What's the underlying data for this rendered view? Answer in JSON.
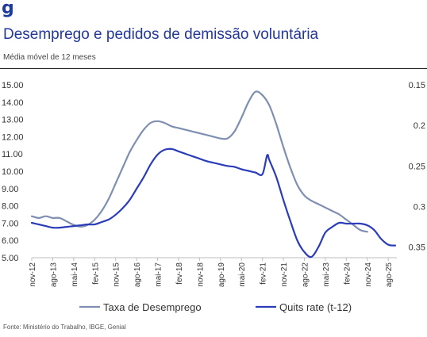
{
  "logo_text": "g",
  "title": "Desemprego e pedidos de demissão voluntária",
  "subtitle": "Média móvel de 12 meses",
  "source": "Fonte: Ministério do Trabalho, IBGE, Genial",
  "colors": {
    "unemployment": "#7f8fb1",
    "quits": "#2b3db8",
    "title": "#23389a"
  },
  "chart_data": {
    "type": "line",
    "x_ticks": [
      "nov-12",
      "ago-13",
      "mai-14",
      "fev-15",
      "nov-15",
      "ago-16",
      "mai-17",
      "fev-18",
      "nov-18",
      "ago-19",
      "mai-20",
      "fev-21",
      "nov-21",
      "ago-22",
      "mai-23",
      "fev-24",
      "nov-24",
      "ago-25"
    ],
    "left_axis": {
      "ticks": [
        "5.00",
        "6.00",
        "7.00",
        "8.00",
        "9.00",
        "10.00",
        "11.00",
        "12.00",
        "13.00",
        "14.00",
        "15.00"
      ],
      "ylim": [
        5,
        15
      ]
    },
    "right_axis": {
      "ticks": [
        "0.15",
        "0.2",
        "0.25",
        "0.3",
        "0.35"
      ],
      "ylim": [
        0.363,
        0.15
      ],
      "inverted": true
    },
    "series": [
      {
        "name": "Taxa de Desemprego",
        "axis": "left",
        "x": [
          "2012-11",
          "2013-02",
          "2013-05",
          "2013-08",
          "2013-11",
          "2014-02",
          "2014-05",
          "2014-08",
          "2014-11",
          "2015-02",
          "2015-05",
          "2015-08",
          "2015-11",
          "2016-02",
          "2016-05",
          "2016-08",
          "2016-11",
          "2017-02",
          "2017-05",
          "2017-08",
          "2017-11",
          "2018-02",
          "2018-05",
          "2018-08",
          "2018-11",
          "2019-02",
          "2019-05",
          "2019-08",
          "2019-11",
          "2020-02",
          "2020-05",
          "2020-08",
          "2020-11",
          "2021-02",
          "2021-05",
          "2021-08",
          "2021-11",
          "2022-02",
          "2022-05",
          "2022-08",
          "2022-11",
          "2023-02",
          "2023-05",
          "2023-08",
          "2023-11",
          "2024-02",
          "2024-05",
          "2024-08",
          "2024-11"
        ],
        "values": [
          7.4,
          7.3,
          7.4,
          7.3,
          7.3,
          7.1,
          6.9,
          6.8,
          6.9,
          7.2,
          7.7,
          8.4,
          9.3,
          10.2,
          11.1,
          11.8,
          12.4,
          12.8,
          12.9,
          12.8,
          12.6,
          12.5,
          12.4,
          12.3,
          12.2,
          12.1,
          12.0,
          11.9,
          11.9,
          12.3,
          13.1,
          14.0,
          14.6,
          14.4,
          13.8,
          12.7,
          11.4,
          10.2,
          9.2,
          8.6,
          8.3,
          8.1,
          7.9,
          7.7,
          7.5,
          7.2,
          6.9,
          6.6,
          6.5
        ]
      },
      {
        "name": "Quits rate (t-12)",
        "axis": "right",
        "x": [
          "2012-11",
          "2013-02",
          "2013-05",
          "2013-08",
          "2013-11",
          "2014-02",
          "2014-05",
          "2014-08",
          "2014-11",
          "2015-02",
          "2015-05",
          "2015-08",
          "2015-11",
          "2016-02",
          "2016-05",
          "2016-08",
          "2016-11",
          "2017-02",
          "2017-05",
          "2017-08",
          "2017-11",
          "2018-02",
          "2018-05",
          "2018-08",
          "2018-11",
          "2019-02",
          "2019-05",
          "2019-08",
          "2019-11",
          "2020-02",
          "2020-05",
          "2020-08",
          "2020-11",
          "2021-02",
          "2021-04",
          "2021-05",
          "2021-08",
          "2021-11",
          "2022-02",
          "2022-05",
          "2022-08",
          "2022-11",
          "2023-02",
          "2023-05",
          "2023-08",
          "2023-11",
          "2024-02",
          "2024-05",
          "2024-08",
          "2024-11",
          "2025-02",
          "2025-05",
          "2025-08",
          "2025-11"
        ],
        "values": [
          0.32,
          0.322,
          0.324,
          0.326,
          0.326,
          0.325,
          0.324,
          0.323,
          0.322,
          0.322,
          0.319,
          0.316,
          0.31,
          0.302,
          0.292,
          0.278,
          0.264,
          0.248,
          0.236,
          0.23,
          0.229,
          0.232,
          0.235,
          0.238,
          0.241,
          0.244,
          0.246,
          0.248,
          0.25,
          0.251,
          0.254,
          0.256,
          0.258,
          0.26,
          0.237,
          0.243,
          0.264,
          0.292,
          0.318,
          0.342,
          0.356,
          0.362,
          0.35,
          0.332,
          0.325,
          0.32,
          0.321,
          0.321,
          0.321,
          0.323,
          0.329,
          0.34,
          0.347,
          0.348
        ]
      }
    ],
    "legend": {
      "placement": "bottom",
      "entries": [
        "Taxa de Desemprego",
        "Quits rate (t-12)"
      ]
    },
    "grid": false
  }
}
